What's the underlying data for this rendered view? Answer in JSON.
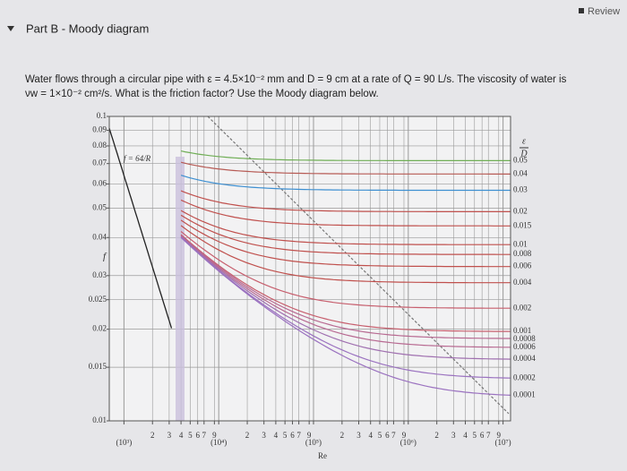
{
  "header": {
    "review": "Review"
  },
  "part": {
    "title": "Part B - Moody diagram"
  },
  "problem": {
    "lines": [
      "Water flows through a circular pipe with ε = 4.5×10⁻² mm and D = 9 cm at a rate of Q = 90 L/s. The viscosity of water is",
      "νw = 1×10⁻² cm²/s. What is the friction factor? Use the Moody diagram below."
    ]
  },
  "chart_data": {
    "type": "line",
    "x_label": "Re",
    "y_label": "f",
    "roughness_label": {
      "numerator": "ε",
      "denominator": "D"
    },
    "laminar_label": "f = 64/R",
    "log_x": true,
    "log_y": true,
    "grid": true,
    "xlim": [
      700,
      12000000
    ],
    "ylim": [
      0.01,
      0.1
    ],
    "yticks": [
      0.01,
      0.015,
      0.02,
      0.025,
      0.03,
      0.04,
      0.05,
      0.06,
      0.07,
      0.08,
      0.09,
      0.1
    ],
    "xticks": [
      {
        "value": 1000,
        "label": "(10³)"
      },
      {
        "value": 2000,
        "label": "2"
      },
      {
        "value": 3000,
        "label": "3"
      },
      {
        "value": 4000,
        "label": "4"
      },
      {
        "value": 5000,
        "label": "5"
      },
      {
        "value": 6000,
        "label": "6"
      },
      {
        "value": 7000,
        "label": "7"
      },
      {
        "value": 9000,
        "label": "9"
      },
      {
        "value": 10000,
        "label": "(10⁴)"
      },
      {
        "value": 20000,
        "label": "2"
      },
      {
        "value": 30000,
        "label": "3"
      },
      {
        "value": 40000,
        "label": "4"
      },
      {
        "value": 50000,
        "label": "5"
      },
      {
        "value": 60000,
        "label": "6"
      },
      {
        "value": 70000,
        "label": "7"
      },
      {
        "value": 90000,
        "label": "9"
      },
      {
        "value": 100000,
        "label": "(10⁵)"
      },
      {
        "value": 200000,
        "label": "2"
      },
      {
        "value": 300000,
        "label": "3"
      },
      {
        "value": 400000,
        "label": "4"
      },
      {
        "value": 500000,
        "label": "5"
      },
      {
        "value": 600000,
        "label": "6"
      },
      {
        "value": 700000,
        "label": "7"
      },
      {
        "value": 900000,
        "label": "9"
      },
      {
        "value": 1000000,
        "label": "(10⁶)"
      },
      {
        "value": 2000000,
        "label": "2"
      },
      {
        "value": 3000000,
        "label": "3"
      },
      {
        "value": 4000000,
        "label": "4"
      },
      {
        "value": 5000000,
        "label": "5"
      },
      {
        "value": 6000000,
        "label": "6"
      },
      {
        "value": 7000000,
        "label": "7"
      },
      {
        "value": 9000000,
        "label": "9"
      },
      {
        "value": 10000000,
        "label": "(10⁷)"
      }
    ],
    "series": [
      {
        "name": "0.05",
        "color": "#6fae55",
        "value": 0.05
      },
      {
        "name": "0.04",
        "color": "#b75b55",
        "value": 0.04
      },
      {
        "name": "0.03",
        "color": "#3d8fd1",
        "value": 0.03
      },
      {
        "name": "0.02",
        "color": "#c0504d",
        "value": 0.02
      },
      {
        "name": "0.015",
        "color": "#c0504d",
        "value": 0.015
      },
      {
        "name": "0.01",
        "color": "#c0504d",
        "value": 0.01
      },
      {
        "name": "0.008",
        "color": "#c0504d",
        "value": 0.008
      },
      {
        "name": "0.006",
        "color": "#c0504d",
        "value": 0.006
      },
      {
        "name": "0.004",
        "color": "#c0504d",
        "value": 0.004
      },
      {
        "name": "0.002",
        "color": "#c75f6e",
        "value": 0.002
      },
      {
        "name": "0.001",
        "color": "#c75f6e",
        "value": 0.001
      },
      {
        "name": "0.0008",
        "color": "#b86a92",
        "value": 0.0008
      },
      {
        "name": "0.0006",
        "color": "#b86a92",
        "value": 0.0006
      },
      {
        "name": "0.0004",
        "color": "#a070b0",
        "value": 0.0004
      },
      {
        "name": "0.0002",
        "color": "#9b72c0",
        "value": 0.0002
      },
      {
        "name": "0.0001",
        "color": "#9b72c0",
        "value": 0.0001
      }
    ]
  }
}
